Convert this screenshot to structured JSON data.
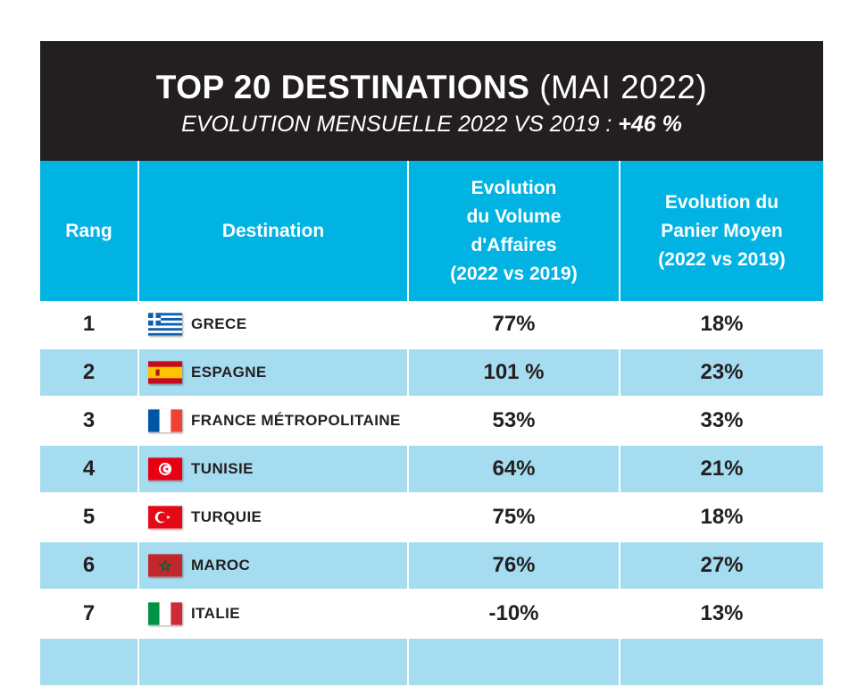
{
  "header": {
    "title_bold": "TOP 20 DESTINATIONS",
    "title_light": "(MAI 2022)",
    "subtitle_text": "EVOLUTION MENSUELLE 2022 VS 2019 :",
    "subtitle_value": "+46 %"
  },
  "table": {
    "columns": {
      "rang": "Rang",
      "destination": "Destination",
      "volume": [
        "Evolution",
        "du Volume",
        "d'Affaires",
        "(2022 vs 2019)"
      ],
      "panier": [
        "Evolution du",
        "Panier Moyen",
        "(2022 vs 2019)"
      ]
    },
    "rows": [
      {
        "rank": "1",
        "flag_icon": "greece-flag-icon",
        "country": "GRECE",
        "volume": "77%",
        "panier": "18%"
      },
      {
        "rank": "2",
        "flag_icon": "spain-flag-icon",
        "country": "ESPAGNE",
        "volume": "101 %",
        "panier": "23%"
      },
      {
        "rank": "3",
        "flag_icon": "france-flag-icon",
        "country": "FRANCE MÉTROPOLITAINE",
        "volume": "53%",
        "panier": "33%"
      },
      {
        "rank": "4",
        "flag_icon": "tunisia-flag-icon",
        "country": "TUNISIE",
        "volume": "64%",
        "panier": "21%"
      },
      {
        "rank": "5",
        "flag_icon": "turkey-flag-icon",
        "country": "TURQUIE",
        "volume": "75%",
        "panier": "18%"
      },
      {
        "rank": "6",
        "flag_icon": "morocco-flag-icon",
        "country": "MAROC",
        "volume": "76%",
        "panier": "27%"
      },
      {
        "rank": "7",
        "flag_icon": "italy-flag-icon",
        "country": "ITALIE",
        "volume": "-10%",
        "panier": "13%"
      }
    ]
  },
  "colors": {
    "banner": "#231f20",
    "header_blue": "#00b3e3",
    "row_alt": "#a6dcf0"
  }
}
